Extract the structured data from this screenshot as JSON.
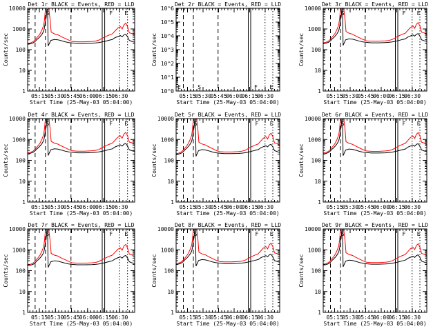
{
  "chart_data": [
    {
      "title": "Det 1r BLACK = Events, RED = LLD",
      "variant": "counts",
      "ylog": [
        0,
        4
      ],
      "ytick_labels": [
        "1",
        "10",
        "100",
        "1000",
        "10000"
      ],
      "shift": 0.0
    },
    {
      "title": "Det 2r BLACK = Events, RED = LLD",
      "variant": "empty",
      "ylog": [
        0,
        6
      ],
      "ytick_labels": [
        "10^0",
        "10^1",
        "10^2",
        "10^3",
        "10^4",
        "10^5",
        "10^6"
      ],
      "annotations": [
        "E",
        "S",
        "F",
        "E"
      ]
    },
    {
      "title": "Det 3r BLACK = Events, RED = LLD",
      "variant": "counts",
      "ylog": [
        0,
        4
      ],
      "ytick_labels": [
        "1",
        "10",
        "100",
        "1000",
        "10000"
      ],
      "shift": 0.03
    },
    {
      "title": "Det 4r BLACK = Events, RED = LLD",
      "variant": "counts",
      "ylog": [
        0,
        4
      ],
      "ytick_labels": [
        "1",
        "10",
        "100",
        "1000",
        "10000"
      ],
      "shift": 0.06
    },
    {
      "title": "Det 5r BLACK = Events, RED = LLD",
      "variant": "counts",
      "ylog": [
        0,
        4
      ],
      "ytick_labels": [
        "1",
        "10",
        "100",
        "1000",
        "10000"
      ],
      "shift": 0.02
    },
    {
      "title": "Det 6r BLACK = Events, RED = LLD",
      "variant": "counts",
      "ylog": [
        0,
        4
      ],
      "ytick_labels": [
        "1",
        "10",
        "100",
        "1000",
        "10000"
      ],
      "shift": 0.05
    },
    {
      "title": "Det 7r BLACK = Events, RED = LLD",
      "variant": "counts",
      "ylog": [
        0,
        4
      ],
      "ytick_labels": [
        "1",
        "10",
        "100",
        "1000",
        "10000"
      ],
      "shift": -0.02
    },
    {
      "title": "Det 8r BLACK = Events, RED = LLD",
      "variant": "counts",
      "ylog": [
        0,
        4
      ],
      "ytick_labels": [
        "1",
        "10",
        "100",
        "1000",
        "10000"
      ],
      "shift": 0.04
    },
    {
      "title": "Det 9r BLACK = Events, RED = LLD",
      "variant": "counts",
      "ylog": [
        0,
        4
      ],
      "ytick_labels": [
        "1",
        "10",
        "100",
        "1000",
        "10000"
      ],
      "shift": 0.01
    }
  ],
  "shared": {
    "type": "line",
    "ylabel": "Counts/sec",
    "xlabel": "Start Time (25-May-03 05:04:00)",
    "xrange_sec": [
      0,
      6000
    ],
    "x_ticks_sec": [
      660,
      1560,
      2460,
      3360,
      4260,
      5160
    ],
    "x_tick_labels": [
      "05:15",
      "05:30",
      "05:45",
      "06:00",
      "06:15",
      "06:30"
    ],
    "minor_step_sec": 180,
    "series_colors": {
      "events": "#000000",
      "lld": "#ff0000"
    },
    "vlines": [
      {
        "t": 420,
        "style": "dashed"
      },
      {
        "t": 1000,
        "style": "dashed"
      },
      {
        "t": 2430,
        "style": "dashed"
      },
      {
        "t": 4180,
        "style": "solid"
      },
      {
        "t": 4320,
        "style": "solid"
      },
      {
        "t": 5150,
        "style": "dotted"
      },
      {
        "t": 5600,
        "style": "dotted"
      }
    ],
    "markers": [
      {
        "t": 950,
        "label": "S"
      },
      {
        "t": 4500,
        "label": "F"
      },
      {
        "t": 5350,
        "label": "E"
      }
    ],
    "lld_counts": [
      [
        0,
        200
      ],
      [
        150,
        210
      ],
      [
        300,
        240
      ],
      [
        420,
        300
      ],
      [
        520,
        380
      ],
      [
        600,
        450
      ],
      [
        700,
        600
      ],
      [
        800,
        900
      ],
      [
        900,
        1500
      ],
      [
        950,
        3000
      ],
      [
        980,
        6000
      ],
      [
        1000,
        10000
      ],
      [
        1180,
        10000
      ],
      [
        1260,
        3000
      ],
      [
        1320,
        700
      ],
      [
        1500,
        580
      ],
      [
        1700,
        520
      ],
      [
        1900,
        420
      ],
      [
        2100,
        350
      ],
      [
        2300,
        290
      ],
      [
        2500,
        250
      ],
      [
        2800,
        240
      ],
      [
        3200,
        240
      ],
      [
        3600,
        250
      ],
      [
        3800,
        260
      ],
      [
        4000,
        290
      ],
      [
        4150,
        340
      ],
      [
        4300,
        400
      ],
      [
        4450,
        460
      ],
      [
        4600,
        520
      ],
      [
        4750,
        580
      ],
      [
        4900,
        800
      ],
      [
        5050,
        1100
      ],
      [
        5200,
        1300
      ],
      [
        5300,
        1000
      ],
      [
        5400,
        1600
      ],
      [
        5500,
        1900
      ],
      [
        5600,
        1300
      ],
      [
        5700,
        650
      ],
      [
        5850,
        600
      ],
      [
        6000,
        500
      ]
    ],
    "event_counts": [
      [
        0,
        180
      ],
      [
        150,
        190
      ],
      [
        300,
        210
      ],
      [
        420,
        250
      ],
      [
        520,
        310
      ],
      [
        600,
        350
      ],
      [
        700,
        430
      ],
      [
        800,
        550
      ],
      [
        900,
        780
      ],
      [
        950,
        1200
      ],
      [
        1000,
        2500
      ],
      [
        1040,
        3500
      ],
      [
        1080,
        9000
      ],
      [
        1120,
        9000
      ],
      [
        1150,
        150
      ],
      [
        1300,
        280
      ],
      [
        1500,
        310
      ],
      [
        1700,
        300
      ],
      [
        1900,
        270
      ],
      [
        2100,
        240
      ],
      [
        2300,
        220
      ],
      [
        2500,
        210
      ],
      [
        2800,
        200
      ],
      [
        3200,
        200
      ],
      [
        3600,
        205
      ],
      [
        3800,
        210
      ],
      [
        4000,
        220
      ],
      [
        4150,
        235
      ],
      [
        4300,
        250
      ],
      [
        4450,
        270
      ],
      [
        4600,
        290
      ],
      [
        4750,
        310
      ],
      [
        4900,
        380
      ],
      [
        5050,
        430
      ],
      [
        5200,
        480
      ],
      [
        5300,
        420
      ],
      [
        5400,
        520
      ],
      [
        5500,
        560
      ],
      [
        5600,
        420
      ],
      [
        5700,
        280
      ],
      [
        5850,
        250
      ],
      [
        6000,
        230
      ]
    ]
  }
}
